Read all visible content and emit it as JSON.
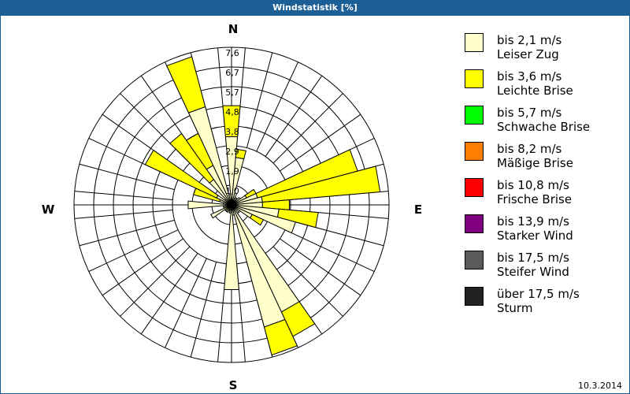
{
  "window": {
    "title": "Windstatistik [%]"
  },
  "footer": {
    "date": "10.3.2014"
  },
  "compass": {
    "N": "N",
    "E": "E",
    "S": "S",
    "W": "W"
  },
  "legend": [
    {
      "line1": "bis 2,1 m/s",
      "line2": "Leiser Zug",
      "color": "#ffffcc"
    },
    {
      "line1": "bis 3,6 m/s",
      "line2": "Leichte Brise",
      "color": "#ffff00"
    },
    {
      "line1": "bis 5,7 m/s",
      "line2": "Schwache Brise",
      "color": "#00ff00"
    },
    {
      "line1": "bis 8,2 m/s",
      "line2": "Mäßige Brise",
      "color": "#ff8000"
    },
    {
      "line1": "bis 10,8 m/s",
      "line2": "Frische Brise",
      "color": "#ff0000"
    },
    {
      "line1": "bis 13,9 m/s",
      "line2": "Starker Wind",
      "color": "#800080"
    },
    {
      "line1": "bis 17,5 m/s",
      "line2": "Steifer Wind",
      "color": "#5a5a5a"
    },
    {
      "line1": "über 17,5 m/s",
      "line2": "Sturm",
      "color": "#222222"
    }
  ],
  "chart_data": {
    "type": "wind-rose",
    "title": "Windstatistik [%]",
    "unit": "%",
    "ring_labels": [
      "1,0",
      "1,9",
      "2,9",
      "3,8",
      "4,8",
      "5,7",
      "6,7",
      "7,6"
    ],
    "rmax": 7.6,
    "sector_width_deg": 10,
    "series_names": [
      "bis 2,1 m/s Leiser Zug",
      "bis 3,6 m/s Leichte Brise"
    ],
    "sectors": [
      {
        "dir": 0,
        "values": [
          3.3,
          1.5
        ]
      },
      {
        "dir": 10,
        "values": [
          2.3,
          0.4
        ]
      },
      {
        "dir": 20,
        "values": [
          0.6,
          0.0
        ]
      },
      {
        "dir": 30,
        "values": [
          0.4,
          0.0
        ]
      },
      {
        "dir": 40,
        "values": [
          0.4,
          0.0
        ]
      },
      {
        "dir": 50,
        "values": [
          0.5,
          0.0
        ]
      },
      {
        "dir": 60,
        "values": [
          0.8,
          0.5
        ]
      },
      {
        "dir": 70,
        "values": [
          1.3,
          5.0
        ]
      },
      {
        "dir": 80,
        "values": [
          1.5,
          5.7
        ]
      },
      {
        "dir": 90,
        "values": [
          1.5,
          1.3
        ]
      },
      {
        "dir": 100,
        "values": [
          2.3,
          1.9
        ]
      },
      {
        "dir": 110,
        "values": [
          3.2,
          0.0
        ]
      },
      {
        "dir": 120,
        "values": [
          1.1,
          0.6
        ]
      },
      {
        "dir": 130,
        "values": [
          0.5,
          0.0
        ]
      },
      {
        "dir": 140,
        "values": [
          0.5,
          0.0
        ]
      },
      {
        "dir": 150,
        "values": [
          5.7,
          1.3
        ]
      },
      {
        "dir": 160,
        "values": [
          6.1,
          1.4
        ]
      },
      {
        "dir": 170,
        "values": [
          0.5,
          0.0
        ]
      },
      {
        "dir": 180,
        "values": [
          4.1,
          0.0
        ]
      },
      {
        "dir": 190,
        "values": [
          0.4,
          0.0
        ]
      },
      {
        "dir": 200,
        "values": [
          0.3,
          0.0
        ]
      },
      {
        "dir": 210,
        "values": [
          0.4,
          0.0
        ]
      },
      {
        "dir": 220,
        "values": [
          0.4,
          0.0
        ]
      },
      {
        "dir": 230,
        "values": [
          0.4,
          0.0
        ]
      },
      {
        "dir": 240,
        "values": [
          1.1,
          0.0
        ]
      },
      {
        "dir": 250,
        "values": [
          0.4,
          0.0
        ]
      },
      {
        "dir": 260,
        "values": [
          0.4,
          0.0
        ]
      },
      {
        "dir": 270,
        "values": [
          2.1,
          0.0
        ]
      },
      {
        "dir": 280,
        "values": [
          0.4,
          0.0
        ]
      },
      {
        "dir": 290,
        "values": [
          0.6,
          1.3
        ]
      },
      {
        "dir": 300,
        "values": [
          0.8,
          3.8
        ]
      },
      {
        "dir": 310,
        "values": [
          0.4,
          0.0
        ]
      },
      {
        "dir": 320,
        "values": [
          1.5,
          2.7
        ]
      },
      {
        "dir": 330,
        "values": [
          2.1,
          1.7
        ]
      },
      {
        "dir": 340,
        "values": [
          4.9,
          2.5
        ]
      },
      {
        "dir": 350,
        "values": [
          0.5,
          0.0
        ]
      }
    ]
  }
}
